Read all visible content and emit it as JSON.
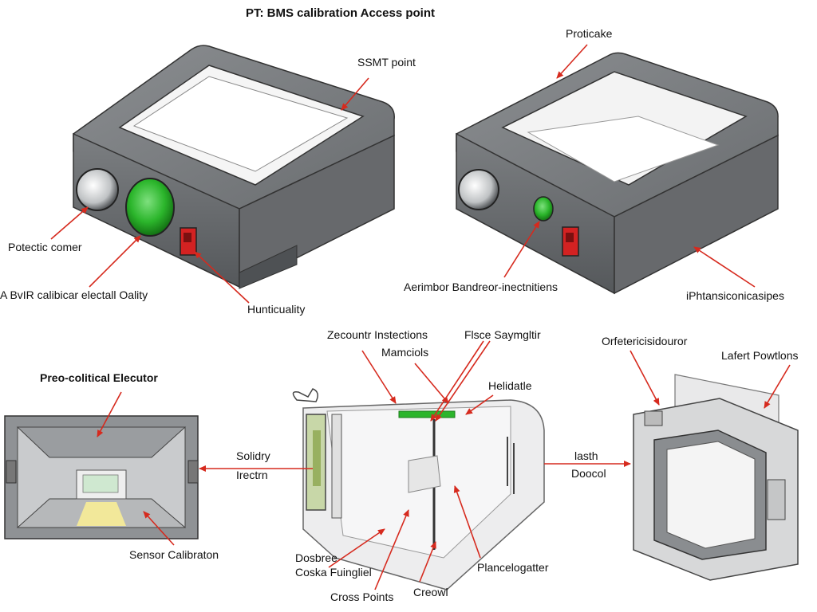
{
  "title": "PT: BMS calibration Access point",
  "colors": {
    "arrow": "#d62a1e",
    "housing": "#6f7275",
    "housing_dark": "#4e5154",
    "led_green": "#2bb52b",
    "led_red": "#d32222",
    "glass": "#f2f2f2",
    "accent_yellow": "#f2e89a"
  },
  "labels": {
    "smt_point": "SSMT point",
    "proticake": "Proticake",
    "potectic_corner": "Potectic comer",
    "a_bvir": "A BvIR calibicar electall Oality",
    "hunticuality": "Hunticuality",
    "aerimbor": "Aerimbor Bandreor-inectnitiens",
    "iphtansi": "iPhtansiconicasipes",
    "preo_colitical": "Preo-colitical Elecutor",
    "zecountr": "Zecountr Instections",
    "mamciols": "Mamciols",
    "flsce": "Flsce Saymgltir",
    "helidatle": "Helidatle",
    "solidry": "Solidry",
    "irectrn": "Irectrn",
    "orfete": "Orfetericisidouror",
    "lafert": "Lafert Powtlons",
    "lasth": "lasth",
    "doocol": "Doocol",
    "sensor_calibraton": "Sensor Calibraton",
    "dosbree": "Dosbree",
    "coska": "Coska Fuingliel",
    "cross_points": "Cross Points",
    "creowl": "Creowl",
    "plancelogatter": "Plancelogatter"
  }
}
